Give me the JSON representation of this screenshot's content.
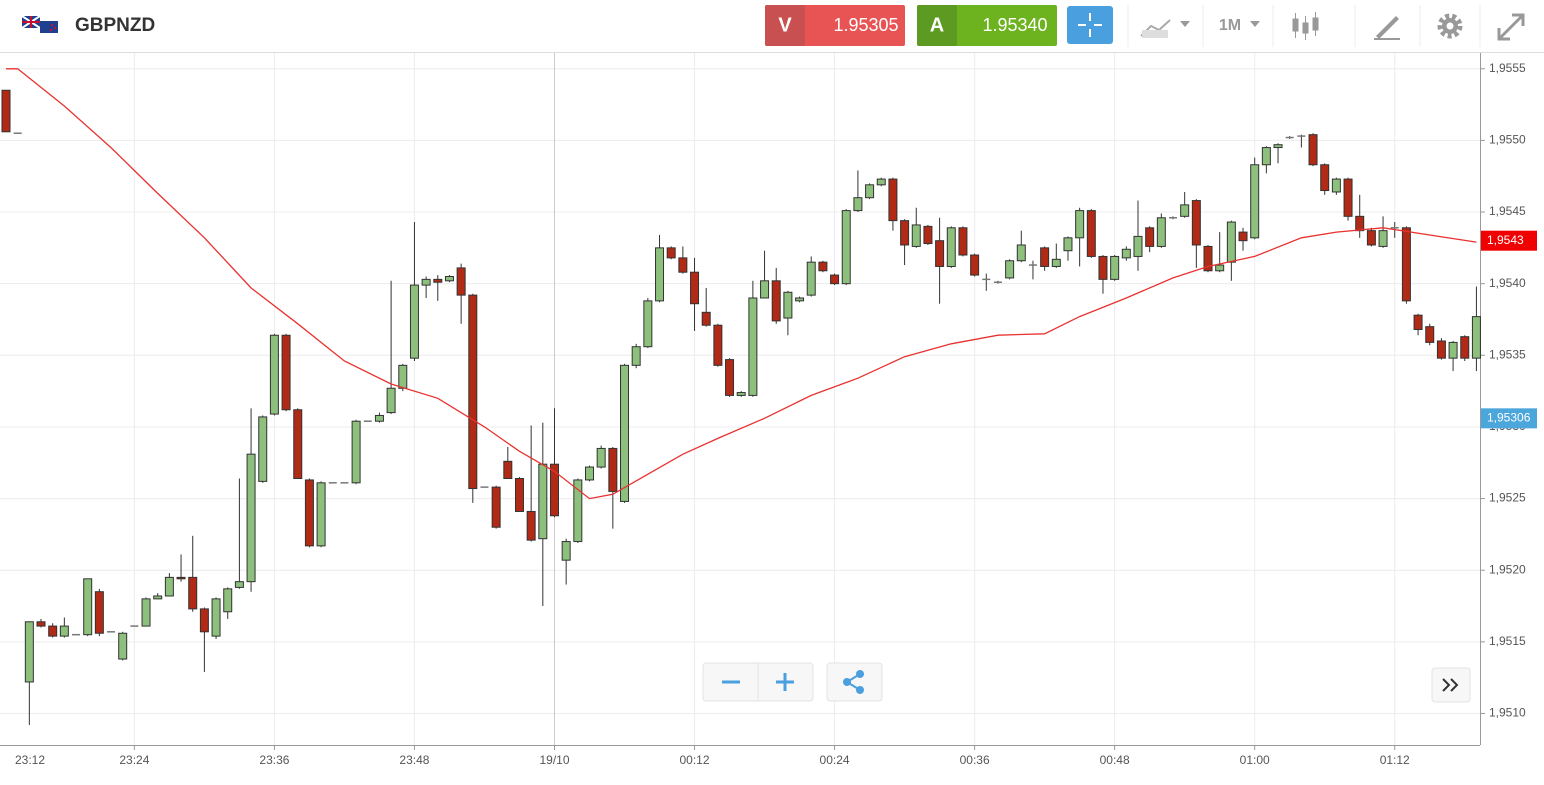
{
  "header": {
    "symbol": "GBPNZD",
    "sell_label": "V",
    "sell_price": "1.95305",
    "buy_label": "A",
    "buy_price": "1.95340",
    "timeframe": "1M"
  },
  "chart_data": {
    "type": "candlestick",
    "x": [
      "23:13",
      "23:14",
      "23:15",
      "23:16",
      "23:17",
      "23:18",
      "23:19",
      "23:20",
      "23:21",
      "23:22",
      "23:23",
      "23:24",
      "23:25",
      "23:26",
      "23:27",
      "23:28",
      "23:29",
      "23:30",
      "23:31",
      "23:32",
      "23:33",
      "23:34",
      "23:35",
      "23:36",
      "23:37",
      "23:38",
      "23:39",
      "23:40",
      "23:41",
      "23:42",
      "23:43",
      "23:44",
      "23:45",
      "23:46",
      "23:47",
      "23:48",
      "23:49",
      "23:50",
      "23:51",
      "23:52",
      "23:53",
      "23:54",
      "23:55",
      "23:56",
      "23:57",
      "23:58",
      "23:59",
      "00:00",
      "00:01",
      "00:02",
      "00:03",
      "00:04",
      "00:05",
      "00:06",
      "00:07",
      "00:08",
      "00:09",
      "00:10",
      "00:11",
      "00:12",
      "00:13",
      "00:14",
      "00:15",
      "00:16",
      "00:17",
      "00:18",
      "00:19",
      "00:20",
      "00:21",
      "00:22",
      "00:23",
      "00:24",
      "00:25",
      "00:26",
      "00:27",
      "00:28",
      "00:29",
      "00:30",
      "00:31",
      "00:32",
      "00:33",
      "00:34",
      "00:35",
      "00:36",
      "00:37",
      "00:38",
      "00:39",
      "00:40",
      "00:41",
      "00:42",
      "00:43",
      "00:44",
      "00:45",
      "00:46",
      "00:47",
      "00:48",
      "00:49",
      "00:50",
      "00:51",
      "00:52",
      "00:53",
      "00:54",
      "00:55",
      "00:56",
      "00:57",
      "00:58",
      "00:59",
      "01:00",
      "01:01",
      "01:02",
      "01:03",
      "01:04",
      "01:05",
      "01:06",
      "01:07",
      "01:08",
      "01:09",
      "01:10",
      "01:11",
      "01:12",
      "01:13",
      "01:14",
      "01:15",
      "01:16",
      "01:17",
      "01:18",
      "01:19"
    ],
    "open": [
      1.95535,
      1.95505,
      1.95122,
      1.95164,
      1.95161,
      1.95154,
      1.95155,
      1.95155,
      1.95185,
      1.95157,
      1.95138,
      1.95161,
      1.95161,
      1.9518,
      1.95182,
      1.95195,
      1.95195,
      1.95173,
      1.95154,
      1.95171,
      1.95188,
      1.95192,
      1.95262,
      1.95309,
      1.95364,
      1.95312,
      1.95263,
      1.95217,
      1.95261,
      1.95261,
      1.95261,
      1.95304,
      1.95304,
      1.9531,
      1.95327,
      1.95348,
      1.95399,
      1.95403,
      1.95402,
      1.95411,
      1.95392,
      1.95258,
      1.95258,
      1.95276,
      1.95264,
      1.95241,
      1.95222,
      1.95274,
      1.95207,
      1.9522,
      1.95263,
      1.95272,
      1.95285,
      1.95248,
      1.95343,
      1.95356,
      1.95388,
      1.95425,
      1.95418,
      1.95408,
      1.9538,
      1.95371,
      1.95347,
      1.95322,
      1.95322,
      1.9539,
      1.95402,
      1.95376,
      1.95388,
      1.95392,
      1.95415,
      1.95406,
      1.954,
      1.95451,
      1.9546,
      1.95469,
      1.95473,
      1.95444,
      1.95426,
      1.9544,
      1.9543,
      1.95412,
      1.95439,
      1.9542,
      1.95403,
      1.95401,
      1.95404,
      1.95416,
      1.95413,
      1.95425,
      1.95412,
      1.95423,
      1.95432,
      1.95451,
      1.95419,
      1.95403,
      1.95418,
      1.95419,
      1.95439,
      1.95426,
      1.95446,
      1.95447,
      1.95458,
      1.95426,
      1.95409,
      1.95415,
      1.95436,
      1.95432,
      1.95483,
      1.95495,
      1.95502,
      1.95503,
      1.95504,
      1.95483,
      1.95464,
      1.95473,
      1.95447,
      1.95437,
      1.95426,
      1.95439,
      1.95439,
      1.95378,
      1.9537,
      1.9536,
      1.95348,
      1.95363,
      1.95348
    ],
    "high": [
      1.95535,
      1.95505,
      1.95164,
      1.95166,
      1.95163,
      1.95167,
      1.95155,
      1.95194,
      1.95187,
      1.95157,
      1.95157,
      1.95161,
      1.95181,
      1.95184,
      1.95198,
      1.95211,
      1.95224,
      1.95174,
      1.95181,
      1.95188,
      1.95264,
      1.95313,
      1.95308,
      1.95365,
      1.95365,
      1.95313,
      1.95264,
      1.95262,
      1.95261,
      1.95261,
      1.95305,
      1.95304,
      1.9531,
      1.95402,
      1.95344,
      1.95443,
      1.95405,
      1.95406,
      1.95406,
      1.95414,
      1.95393,
      1.95258,
      1.95259,
      1.95286,
      1.95265,
      1.95301,
      1.95303,
      1.95313,
      1.95222,
      1.95264,
      1.95273,
      1.95287,
      1.95286,
      1.95344,
      1.95358,
      1.9539,
      1.95434,
      1.95426,
      1.95426,
      1.95418,
      1.95397,
      1.95372,
      1.95348,
      1.95325,
      1.95402,
      1.95423,
      1.95411,
      1.95395,
      1.95391,
      1.95419,
      1.95416,
      1.95407,
      1.95452,
      1.95479,
      1.9547,
      1.95474,
      1.95474,
      1.95445,
      1.95453,
      1.95441,
      1.95446,
      1.9544,
      1.9544,
      1.95421,
      1.95407,
      1.95402,
      1.95417,
      1.95437,
      1.95416,
      1.95426,
      1.95428,
      1.95433,
      1.95453,
      1.95452,
      1.9542,
      1.9542,
      1.95426,
      1.95458,
      1.9544,
      1.95449,
      1.95447,
      1.95464,
      1.95459,
      1.95427,
      1.95436,
      1.95444,
      1.95439,
      1.95488,
      1.95496,
      1.95498,
      1.95503,
      1.95504,
      1.95505,
      1.95484,
      1.95474,
      1.95474,
      1.95462,
      1.95439,
      1.95447,
      1.95443,
      1.9544,
      1.95379,
      1.95372,
      1.95362,
      1.9536,
      1.95364,
      1.95398
    ],
    "low": [
      1.95506,
      1.95505,
      1.95092,
      1.9516,
      1.95153,
      1.95153,
      1.95155,
      1.95154,
      1.95154,
      1.95157,
      1.95137,
      1.95161,
      1.95161,
      1.9518,
      1.95182,
      1.95192,
      1.95171,
      1.95129,
      1.95152,
      1.95166,
      1.95187,
      1.95185,
      1.95261,
      1.95308,
      1.95311,
      1.95264,
      1.95216,
      1.95216,
      1.95261,
      1.95261,
      1.9526,
      1.95304,
      1.95303,
      1.95309,
      1.95325,
      1.95346,
      1.9539,
      1.95388,
      1.95401,
      1.95372,
      1.95247,
      1.95258,
      1.95229,
      1.95264,
      1.95241,
      1.9522,
      1.95175,
      1.95237,
      1.9519,
      1.95219,
      1.95262,
      1.95271,
      1.95229,
      1.95247,
      1.95341,
      1.95355,
      1.95387,
      1.95417,
      1.95407,
      1.95367,
      1.9537,
      1.95342,
      1.95321,
      1.95321,
      1.95321,
      1.9539,
      1.95372,
      1.95364,
      1.95387,
      1.95391,
      1.95408,
      1.95399,
      1.95399,
      1.9545,
      1.95459,
      1.95468,
      1.95437,
      1.95413,
      1.95425,
      1.95427,
      1.95386,
      1.95411,
      1.95419,
      1.95405,
      1.95395,
      1.954,
      1.95403,
      1.95415,
      1.95403,
      1.95409,
      1.95411,
      1.95416,
      1.95412,
      1.95418,
      1.95393,
      1.95402,
      1.95416,
      1.95409,
      1.95422,
      1.95425,
      1.95445,
      1.95446,
      1.95411,
      1.95408,
      1.95408,
      1.95402,
      1.95423,
      1.95431,
      1.95477,
      1.95484,
      1.95501,
      1.95495,
      1.95482,
      1.95462,
      1.95462,
      1.95444,
      1.95432,
      1.95426,
      1.95425,
      1.95432,
      1.95386,
      1.95364,
      1.95357,
      1.95347,
      1.95339,
      1.95346,
      1.95339
    ],
    "close": [
      1.95506,
      1.95505,
      1.95164,
      1.95161,
      1.95154,
      1.95161,
      1.95155,
      1.95194,
      1.95156,
      1.95157,
      1.95156,
      1.95161,
      1.9518,
      1.95182,
      1.95195,
      1.95194,
      1.95173,
      1.95157,
      1.9518,
      1.95187,
      1.95192,
      1.95281,
      1.95307,
      1.95364,
      1.95312,
      1.95264,
      1.95217,
      1.95261,
      1.95261,
      1.95261,
      1.95304,
      1.95304,
      1.95308,
      1.95327,
      1.95343,
      1.95399,
      1.95403,
      1.95401,
      1.95405,
      1.95392,
      1.95257,
      1.95258,
      1.9523,
      1.95264,
      1.95241,
      1.95221,
      1.95274,
      1.95238,
      1.9522,
      1.95263,
      1.95272,
      1.95285,
      1.95255,
      1.95343,
      1.95356,
      1.95388,
      1.95425,
      1.95418,
      1.95408,
      1.95386,
      1.95371,
      1.95343,
      1.95322,
      1.95324,
      1.9539,
      1.95402,
      1.95374,
      1.95394,
      1.9539,
      1.95415,
      1.95409,
      1.954,
      1.95451,
      1.9546,
      1.95469,
      1.95473,
      1.95444,
      1.95427,
      1.95441,
      1.95428,
      1.95412,
      1.95439,
      1.9542,
      1.95406,
      1.95403,
      1.95401,
      1.95416,
      1.95427,
      1.95413,
      1.95412,
      1.95417,
      1.95432,
      1.95451,
      1.95419,
      1.95403,
      1.95419,
      1.95424,
      1.95433,
      1.95426,
      1.95446,
      1.95446,
      1.95455,
      1.95427,
      1.95409,
      1.95413,
      1.95443,
      1.9543,
      1.95483,
      1.95495,
      1.95497,
      1.95502,
      1.95503,
      1.95483,
      1.95465,
      1.95473,
      1.95447,
      1.95437,
      1.95427,
      1.95437,
      1.95439,
      1.95388,
      1.95368,
      1.95359,
      1.95348,
      1.95359,
      1.95348,
      1.95377
    ],
    "up_color": "#8cc07c",
    "down_color": "#b02a16",
    "ylim": [
      1.95078,
      1.95561
    ],
    "yticks": [
      {
        "value": 1.951,
        "label": "1,9510"
      },
      {
        "value": 1.9515,
        "label": "1,9515"
      },
      {
        "value": 1.952,
        "label": "1,9520"
      },
      {
        "value": 1.9525,
        "label": "1,9525"
      },
      {
        "value": 1.953,
        "label": "1,9530"
      },
      {
        "value": 1.9535,
        "label": "1,9535"
      },
      {
        "value": 1.954,
        "label": "1,9540"
      },
      {
        "value": 1.9545,
        "label": "1,9545"
      },
      {
        "value": 1.955,
        "label": "1,9550"
      },
      {
        "value": 1.9555,
        "label": "1,9555"
      }
    ],
    "xticks": [
      "23:12",
      "23:24",
      "23:36",
      "23:48",
      {
        "value": "00:00",
        "label": "19/10"
      },
      "00:12",
      "00:24",
      "00:36",
      "00:48",
      "01:00",
      "01:12"
    ],
    "grid": true,
    "moving_average": {
      "color": "#e8322f",
      "x": [
        "23:13",
        "23:14",
        "23:18",
        "23:22",
        "23:26",
        "23:30",
        "23:34",
        "23:38",
        "23:42",
        "23:46",
        "23:50",
        "23:54",
        "23:57",
        "00:00",
        "00:03",
        "00:05",
        "00:08",
        "00:11",
        "00:14",
        "00:18",
        "00:22",
        "00:26",
        "00:30",
        "00:34",
        "00:38",
        "00:42",
        "00:45",
        "00:49",
        "00:53",
        "00:56",
        "01:00",
        "01:04",
        "01:07",
        "01:11",
        "01:15",
        "01:19"
      ],
      "values": [
        1.9555,
        1.9555,
        1.95524,
        1.95495,
        1.95463,
        1.95432,
        1.95397,
        1.95372,
        1.95346,
        1.9533,
        1.9532,
        1.953,
        1.95283,
        1.95269,
        1.9525,
        1.95253,
        1.95267,
        1.95281,
        1.95292,
        1.95306,
        1.95322,
        1.95334,
        1.95349,
        1.95358,
        1.95364,
        1.95365,
        1.95377,
        1.9539,
        1.95404,
        1.95412,
        1.95419,
        1.95432,
        1.95436,
        1.95439,
        1.95434,
        1.95429
      ]
    },
    "price_markers": [
      {
        "value": 1.9543,
        "label": "1,9543",
        "color": "#f00000"
      },
      {
        "value": 1.95306,
        "label": "1,95306",
        "color": "#4aa6db"
      }
    ]
  }
}
